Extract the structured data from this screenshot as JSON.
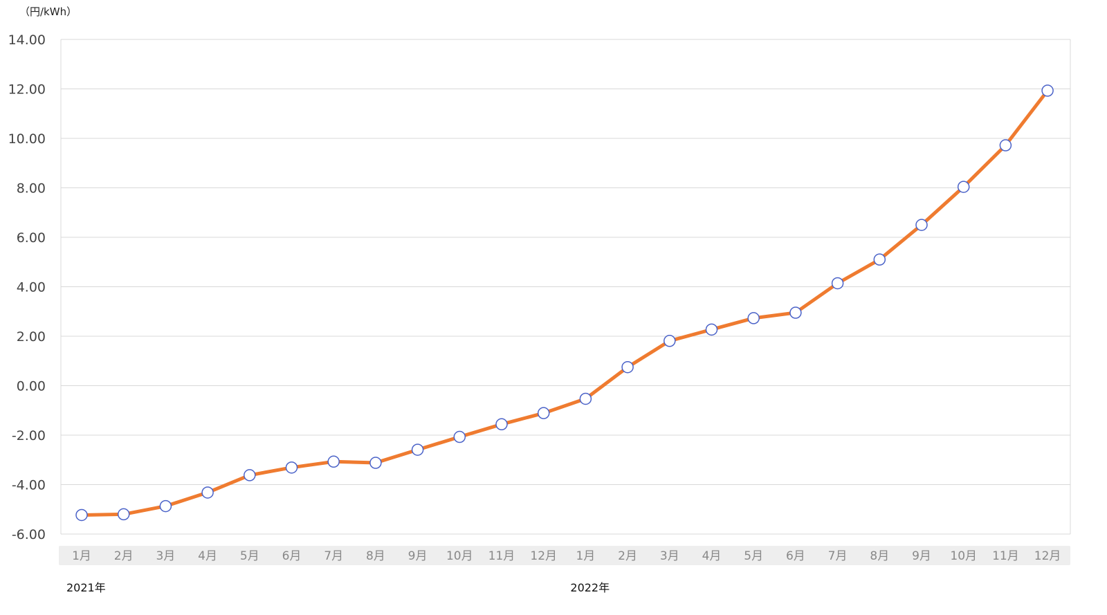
{
  "chart_data": {
    "type": "line",
    "unit_label": "（円/kWh）",
    "ylim": [
      -6,
      14
    ],
    "yticks": [
      "14.00",
      "12.00",
      "10.00",
      "8.00",
      "6.00",
      "4.00",
      "2.00",
      "0.00",
      "-2.00",
      "-4.00",
      "-6.00"
    ],
    "ytick_values": [
      14,
      12,
      10,
      8,
      6,
      4,
      2,
      0,
      -2,
      -4,
      -6
    ],
    "groups": [
      {
        "label": "2021年",
        "categories": [
          "1月",
          "2月",
          "3月",
          "4月",
          "5月",
          "6月",
          "7月",
          "8月",
          "9月",
          "10月",
          "11月",
          "12月"
        ]
      },
      {
        "label": "2022年",
        "categories": [
          "1月",
          "2月",
          "3月",
          "4月",
          "5月",
          "6月",
          "7月",
          "8月",
          "9月",
          "10月",
          "11月",
          "12月"
        ]
      }
    ],
    "series": [
      {
        "values": [
          -5.23,
          -5.2,
          -4.87,
          -4.32,
          -3.62,
          -3.31,
          -3.07,
          -3.12,
          -2.59,
          -2.07,
          -1.56,
          -1.11,
          -0.53,
          0.75,
          1.81,
          2.27,
          2.73,
          2.95,
          4.14,
          5.1,
          6.5,
          8.04,
          9.72,
          11.93
        ],
        "color": "#ef7b30",
        "marker_fill": "#ffffff",
        "marker_stroke": "#4a62c8"
      }
    ],
    "grid": true,
    "colors": {
      "grid": "#d8d8d8",
      "axis_band": "#eeeeee"
    }
  }
}
